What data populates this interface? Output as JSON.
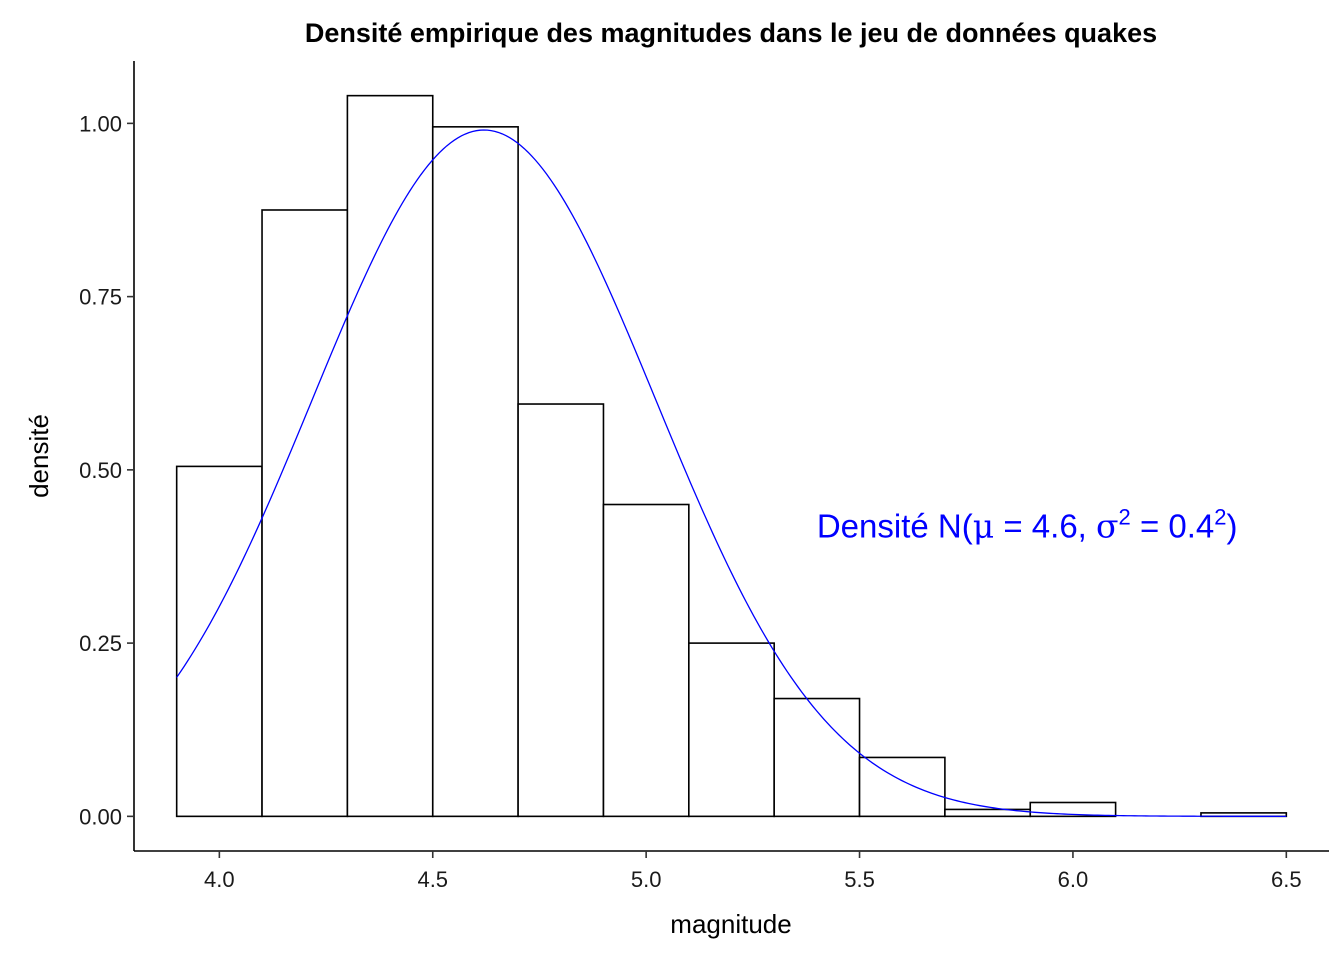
{
  "chart_data": {
    "type": "bar",
    "title": "Densité empirique des magnitudes dans le jeu de données quakes",
    "xlabel": "magnitude",
    "ylabel": "densité",
    "xlim": [
      3.8,
      6.6
    ],
    "ylim": [
      -0.05,
      1.09
    ],
    "x_ticks": [
      4.0,
      4.5,
      5.0,
      5.5,
      6.0,
      6.5
    ],
    "x_tick_labels": [
      "4.0",
      "4.5",
      "5.0",
      "5.5",
      "6.0",
      "6.5"
    ],
    "y_ticks": [
      0.0,
      0.25,
      0.5,
      0.75,
      1.0
    ],
    "y_tick_labels": [
      "0.00",
      "0.25",
      "0.50",
      "0.75",
      "1.00"
    ],
    "bins": [
      {
        "x0": 3.9,
        "x1": 4.1,
        "density": 0.505
      },
      {
        "x0": 4.1,
        "x1": 4.3,
        "density": 0.875
      },
      {
        "x0": 4.3,
        "x1": 4.5,
        "density": 1.04
      },
      {
        "x0": 4.5,
        "x1": 4.7,
        "density": 0.995
      },
      {
        "x0": 4.7,
        "x1": 4.9,
        "density": 0.595
      },
      {
        "x0": 4.9,
        "x1": 5.1,
        "density": 0.45
      },
      {
        "x0": 5.1,
        "x1": 5.3,
        "density": 0.25
      },
      {
        "x0": 5.3,
        "x1": 5.5,
        "density": 0.17
      },
      {
        "x0": 5.5,
        "x1": 5.7,
        "density": 0.085
      },
      {
        "x0": 5.7,
        "x1": 5.9,
        "density": 0.01
      },
      {
        "x0": 5.9,
        "x1": 6.1,
        "density": 0.02
      },
      {
        "x0": 6.1,
        "x1": 6.3,
        "density": 0.0
      },
      {
        "x0": 6.3,
        "x1": 6.5,
        "density": 0.005
      }
    ],
    "curve": {
      "type": "normal-density",
      "mean": 4.62,
      "sd": 0.4028,
      "x_range": [
        3.9,
        6.5
      ],
      "color": "#0000ff"
    },
    "annotation": {
      "prefix": "Densité N(",
      "mu_symbol": "μ",
      "mid": " = 4.6, ",
      "sigma_symbol": "σ",
      "sup1": "2",
      "eq": " = 0.4",
      "sup2": "2",
      "suffix": ")",
      "color": "#0000ff",
      "x": 5.4,
      "y": 0.42
    },
    "colors": {
      "bar_fill": "#ffffff",
      "bar_stroke": "#000000",
      "axis": "#000000"
    }
  }
}
